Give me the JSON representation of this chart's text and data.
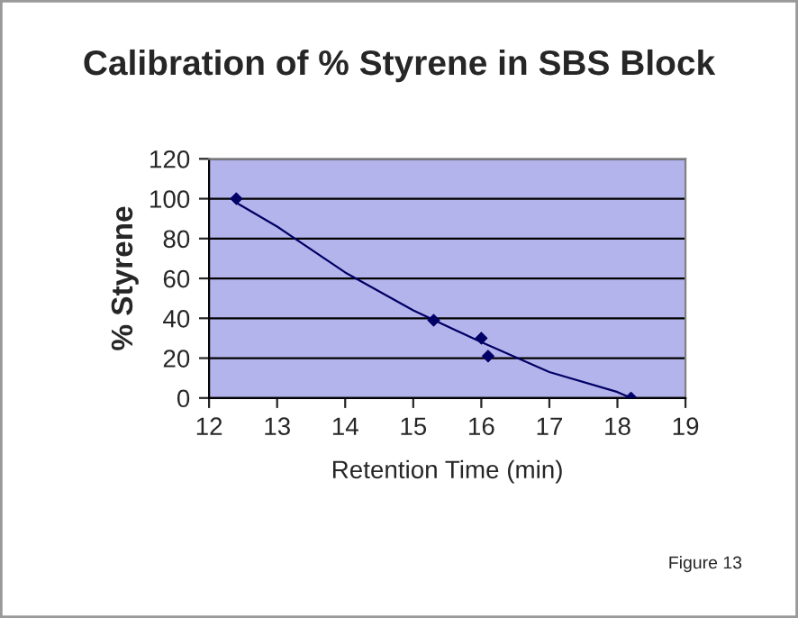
{
  "chart_data": {
    "type": "scatter",
    "title": "Calibration of % Styrene in SBS Block",
    "xlabel": "Retention Time (min)",
    "ylabel": "% Styrene",
    "series": [
      {
        "color": "#000066",
        "x": [
          12.4,
          15.3,
          16.0,
          16.1,
          18.2
        ],
        "values": [
          100,
          39,
          30,
          21,
          0
        ],
        "marker": "diamond"
      },
      {
        "type": "line",
        "color": "#000066",
        "x": [
          12.4,
          13,
          14,
          15,
          16,
          17,
          18,
          18.2
        ],
        "values": [
          98,
          86,
          63,
          44,
          28,
          13,
          3,
          0
        ],
        "marker": "none"
      }
    ],
    "xlim": [
      12,
      19
    ],
    "xticks": [
      12,
      13,
      14,
      15,
      16,
      17,
      18,
      19
    ],
    "ylim": [
      0,
      120
    ],
    "yticks": [
      0,
      20,
      40,
      60,
      80,
      100,
      120
    ],
    "grid": "y",
    "legend": false,
    "annotations": [
      "Figure 13"
    ]
  }
}
